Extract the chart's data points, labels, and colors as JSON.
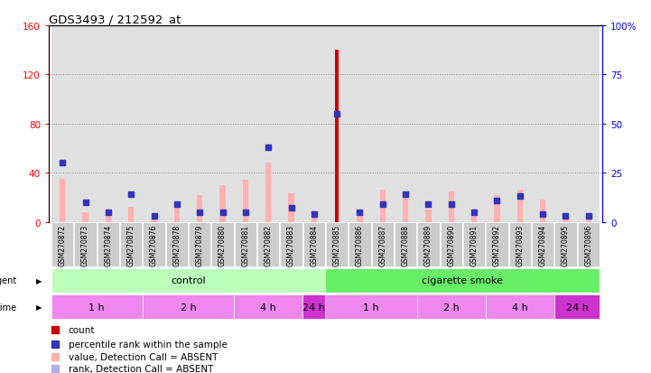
{
  "title": "GDS3493 / 212592_at",
  "samples": [
    "GSM270872",
    "GSM270873",
    "GSM270874",
    "GSM270875",
    "GSM270876",
    "GSM270878",
    "GSM270879",
    "GSM270880",
    "GSM270881",
    "GSM270882",
    "GSM270883",
    "GSM270884",
    "GSM270885",
    "GSM270886",
    "GSM270887",
    "GSM270888",
    "GSM270889",
    "GSM270890",
    "GSM270891",
    "GSM270892",
    "GSM270893",
    "GSM270894",
    "GSM270895",
    "GSM270896"
  ],
  "count_values": [
    0,
    0,
    0,
    0,
    0,
    0,
    0,
    0,
    0,
    0,
    0,
    0,
    140,
    0,
    0,
    0,
    0,
    0,
    0,
    0,
    0,
    0,
    0,
    0
  ],
  "rank_values": [
    30,
    10,
    5,
    14,
    3,
    9,
    5,
    5,
    5,
    38,
    7,
    4,
    55,
    5,
    9,
    14,
    9,
    9,
    5,
    11,
    13,
    4,
    3,
    3
  ],
  "absent_value": [
    35,
    8,
    5,
    12,
    3,
    15,
    22,
    30,
    34,
    48,
    23,
    7,
    0,
    7,
    26,
    22,
    10,
    25,
    6,
    22,
    26,
    18,
    4,
    5
  ],
  "absent_rank": [
    30,
    10,
    5,
    14,
    3,
    9,
    5,
    5,
    5,
    38,
    7,
    4,
    0,
    5,
    9,
    14,
    9,
    9,
    5,
    11,
    13,
    4,
    3,
    3
  ],
  "count_color": "#cc0000",
  "rank_color": "#3333bb",
  "absent_value_color": "#ffb0b0",
  "absent_rank_color": "#b0b0ee",
  "ylim_left": [
    0,
    160
  ],
  "ylim_right": [
    0,
    100
  ],
  "yticks_left": [
    0,
    40,
    80,
    120,
    160
  ],
  "yticks_right": [
    0,
    25,
    50,
    75,
    100
  ],
  "ytick_labels_left": [
    "0",
    "40",
    "80",
    "120",
    "160"
  ],
  "ytick_labels_right": [
    "0",
    "25",
    "50",
    "75",
    "100%"
  ],
  "agent_control_color": "#bbffbb",
  "agent_smoke_color": "#66ee66",
  "time_light_color": "#ee88ee",
  "time_dark_color": "#cc33cc",
  "grid_color": "#888888",
  "sample_box_color": "#cccccc",
  "plot_bg": "#ffffff"
}
